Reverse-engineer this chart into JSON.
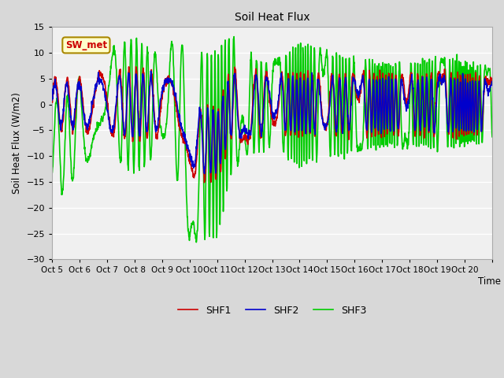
{
  "title": "Soil Heat Flux",
  "ylabel": "Soil Heat Flux (W/m2)",
  "xlabel": "Time",
  "xlim": [
    0,
    16
  ],
  "ylim": [
    -30,
    15
  ],
  "yticks": [
    -30,
    -25,
    -20,
    -15,
    -10,
    -5,
    0,
    5,
    10,
    15
  ],
  "xtick_labels": [
    "Oct 5",
    "Oct 6",
    "Oct 7",
    "Oct 8",
    "Oct 9",
    "Oct 10",
    "Oct 11",
    "Oct 12",
    "Oct 13",
    "Oct 14",
    "Oct 15",
    "Oct 16",
    "Oct 17",
    "Oct 18",
    "Oct 19",
    "Oct 20"
  ],
  "bg_color": "#d8d8d8",
  "plot_bg_color": "#f0f0f0",
  "grid_color": "#ffffff",
  "shf1_color": "#cc0000",
  "shf2_color": "#0000cc",
  "shf3_color": "#00cc00",
  "annotation_text": "SW_met",
  "annotation_color": "#cc0000",
  "annotation_bg": "#ffffcc",
  "annotation_edge": "#aa8800"
}
